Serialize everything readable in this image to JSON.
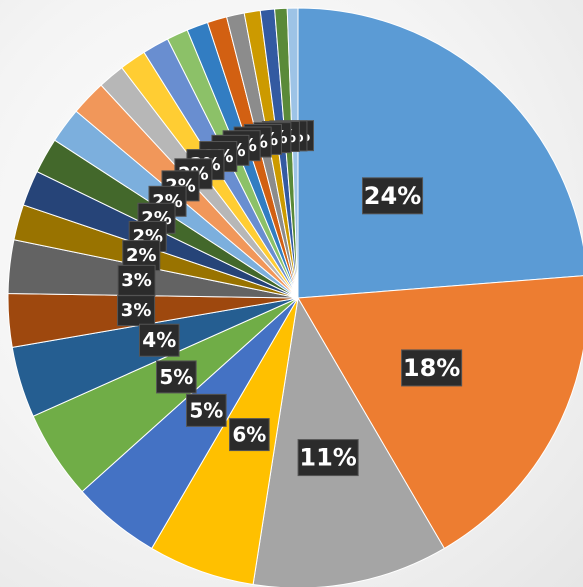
{
  "chart_data": {
    "type": "pie",
    "start_angle": "12 o'clock, clockwise",
    "slices": [
      {
        "value": 24,
        "label": "24%",
        "color": "#5B9BD5"
      },
      {
        "value": 18,
        "label": "18%",
        "color": "#ED7D31"
      },
      {
        "value": 11,
        "label": "11%",
        "color": "#A5A5A5"
      },
      {
        "value": 6,
        "label": "6%",
        "color": "#FFC000"
      },
      {
        "value": 5,
        "label": "5%",
        "color": "#4472C4"
      },
      {
        "value": 5,
        "label": "5%",
        "color": "#70AD47"
      },
      {
        "value": 4,
        "label": "4%",
        "color": "#255E91"
      },
      {
        "value": 3,
        "label": "3%",
        "color": "#9E480E"
      },
      {
        "value": 3,
        "label": "3%",
        "color": "#636363"
      },
      {
        "value": 2,
        "label": "2%",
        "color": "#997300"
      },
      {
        "value": 2,
        "label": "2%",
        "color": "#264478"
      },
      {
        "value": 2,
        "label": "2%",
        "color": "#43682B"
      },
      {
        "value": 2,
        "label": "2%",
        "color": "#7CAFDD"
      },
      {
        "value": 2,
        "label": "2%",
        "color": "#F1975A"
      },
      {
        "value": 1.5,
        "label": "2%",
        "color": "#B7B7B7"
      },
      {
        "value": 1.5,
        "label": "2%",
        "color": "#FFCD33"
      },
      {
        "value": 1.5,
        "label": "2%",
        "color": "#698ED0"
      },
      {
        "value": 1.2,
        "label": "1%",
        "color": "#8CC168"
      },
      {
        "value": 1.2,
        "label": "1%",
        "color": "#327DC2"
      },
      {
        "value": 1.1,
        "label": "1%",
        "color": "#D26012"
      },
      {
        "value": 1.0,
        "label": "1%",
        "color": "#8C8C8C"
      },
      {
        "value": 0.9,
        "label": "1%",
        "color": "#CC9A00"
      },
      {
        "value": 0.8,
        "label": "1%",
        "color": "#335AA1"
      },
      {
        "value": 0.7,
        "label": "1%",
        "color": "#5A8A39"
      },
      {
        "value": 0.6,
        "label": "1%",
        "color": "#9DC3E6"
      }
    ]
  }
}
